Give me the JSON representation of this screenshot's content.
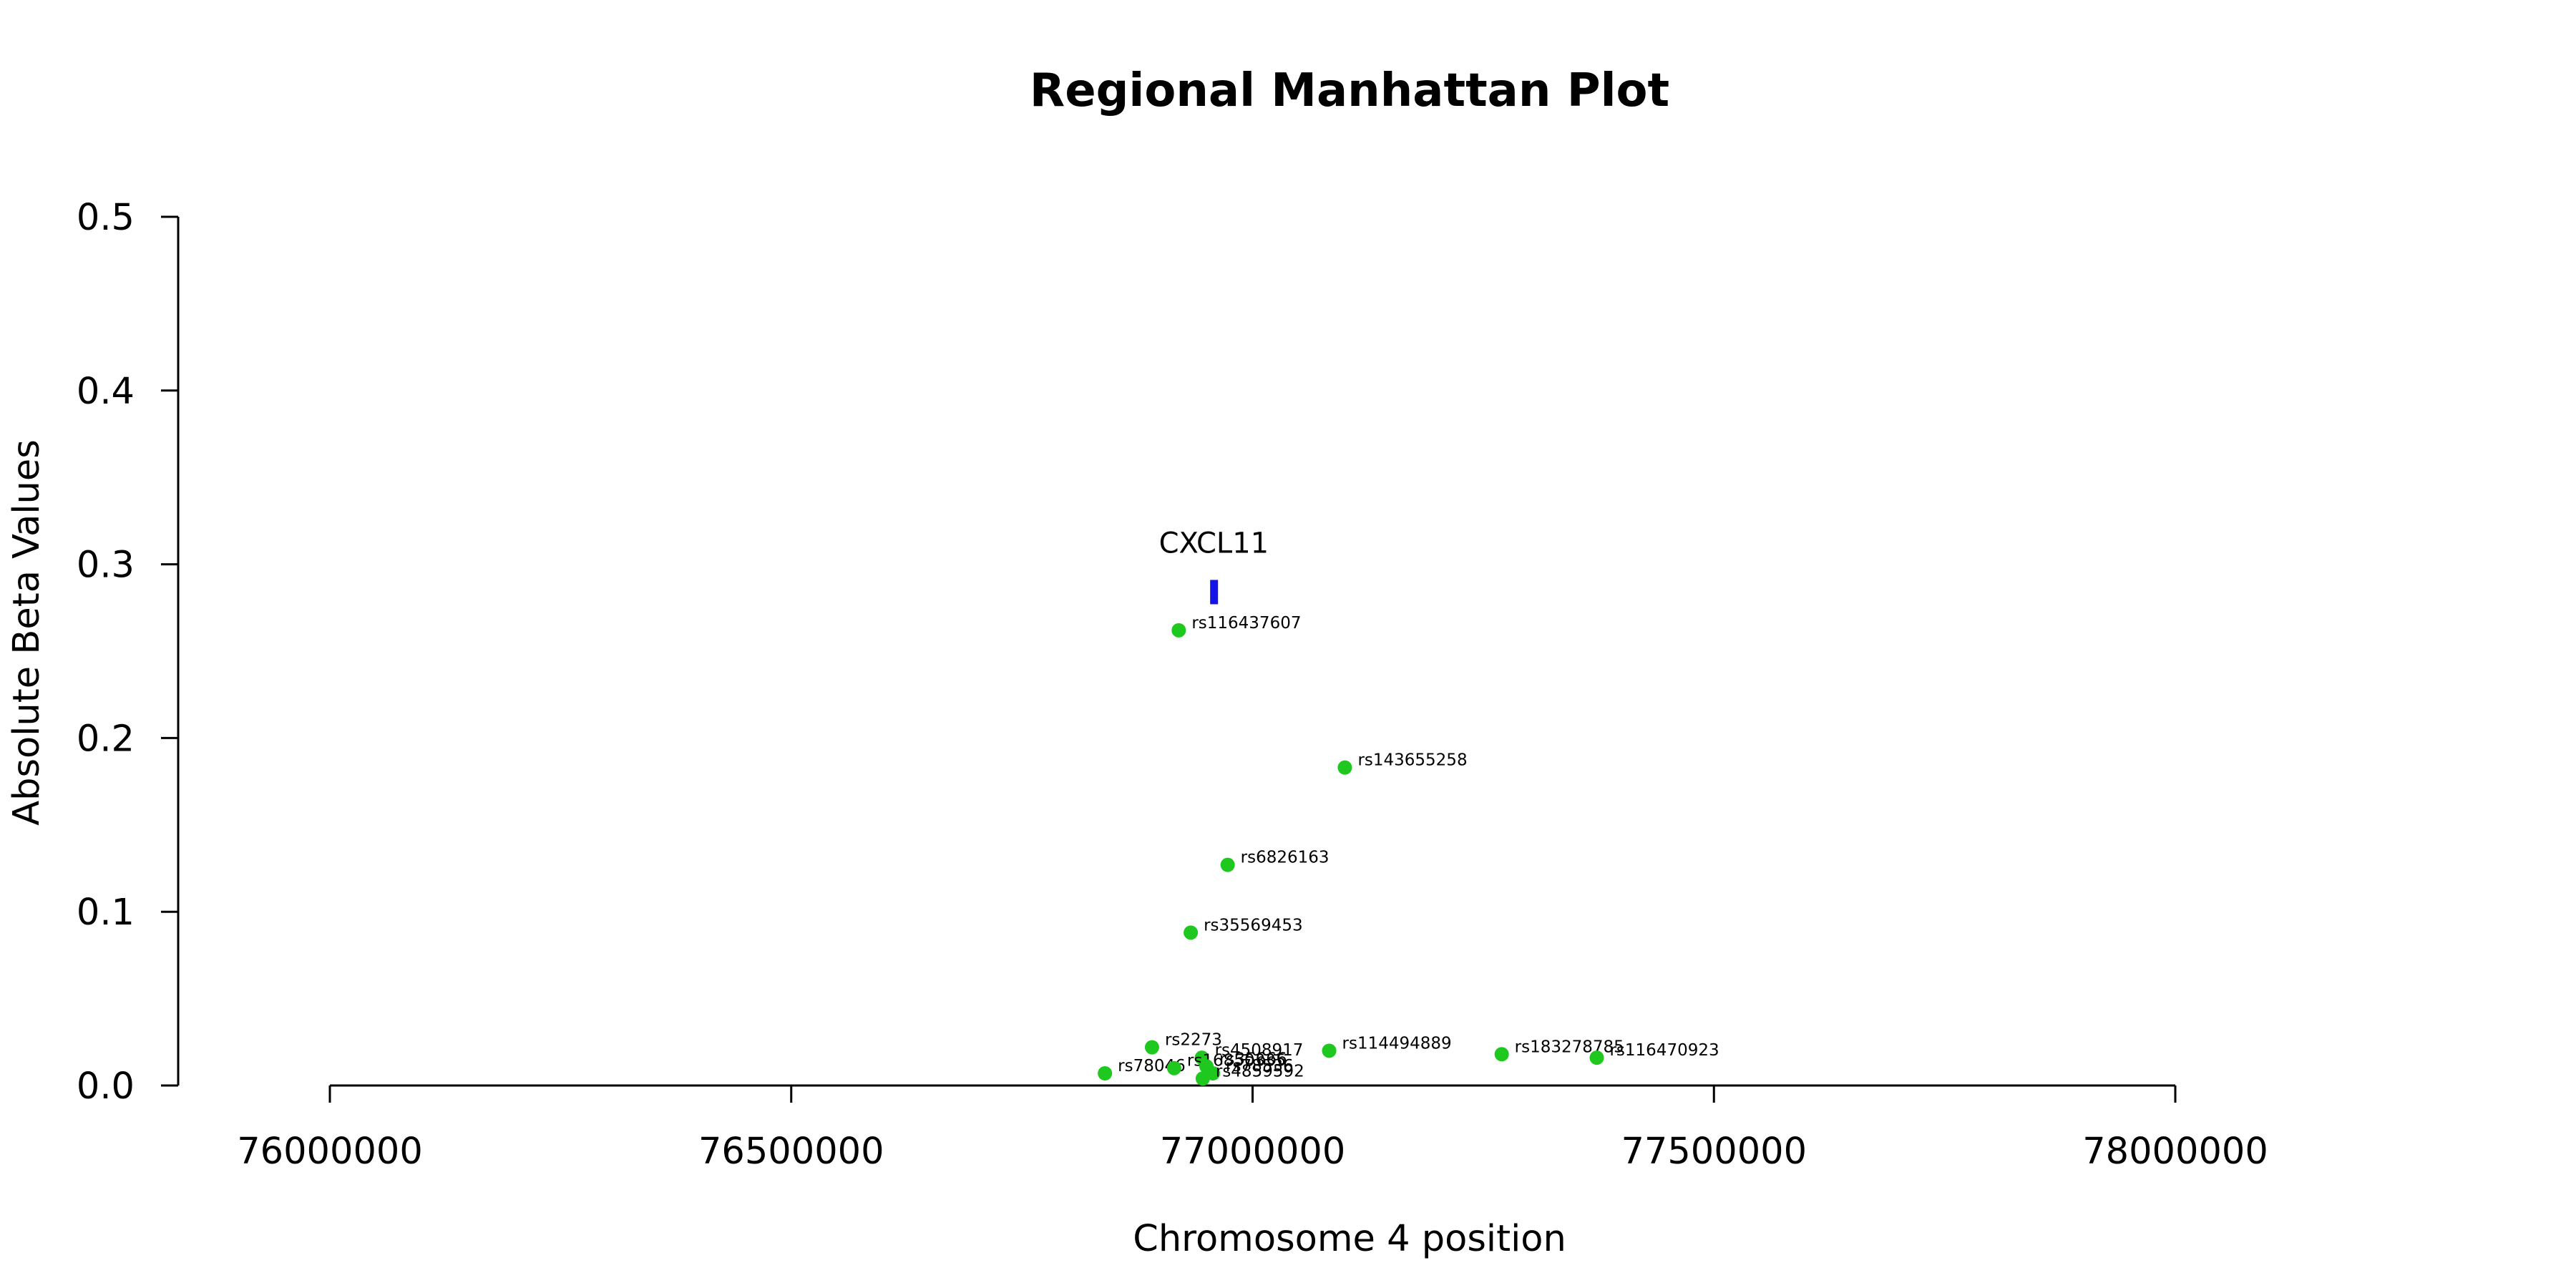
{
  "chart_data": {
    "type": "scatter",
    "title": "Regional Manhattan Plot",
    "xlabel": "Chromosome 4 position",
    "ylabel": "Absolute Beta Values",
    "xlim": [
      76000000,
      78000000
    ],
    "ylim": [
      0,
      0.5
    ],
    "x_ticks": [
      76000000,
      76500000,
      77000000,
      77500000,
      78000000
    ],
    "y_ticks": [
      0.0,
      0.1,
      0.2,
      0.3,
      0.4,
      0.5
    ],
    "x_tick_labels": [
      "76000000",
      "76500000",
      "77000000",
      "77500000",
      "78000000"
    ],
    "y_tick_labels": [
      "0.0",
      "0.1",
      "0.2",
      "0.3",
      "0.4",
      "0.5"
    ],
    "grid": false,
    "point_color": "#1ec81e",
    "gene_color": "#1414e6",
    "gene": {
      "name": "CXCL11",
      "start": 76954000,
      "end": 76962000,
      "y": 0.284
    },
    "points": [
      {
        "id": "rs116437607",
        "x": 76920000,
        "y": 0.262
      },
      {
        "id": "rs143655258",
        "x": 77100000,
        "y": 0.183
      },
      {
        "id": "rs6826163",
        "x": 76973000,
        "y": 0.127
      },
      {
        "id": "rs35569453",
        "x": 76933000,
        "y": 0.088
      },
      {
        "id": "rs2273",
        "x": 76891000,
        "y": 0.022
      },
      {
        "id": "rs4508917",
        "x": 76945000,
        "y": 0.016
      },
      {
        "id": "rs114494889",
        "x": 77083000,
        "y": 0.02
      },
      {
        "id": "rs183278785",
        "x": 77270000,
        "y": 0.018
      },
      {
        "id": "rs116470923",
        "x": 77373000,
        "y": 0.016
      },
      {
        "id": "rs78046",
        "x": 76840000,
        "y": 0.007
      },
      {
        "id": "rs16850335",
        "x": 76915000,
        "y": 0.01
      },
      {
        "id": "rs35666",
        "x": 76950000,
        "y": 0.011
      },
      {
        "id": "rs78536",
        "x": 76957000,
        "y": 0.007
      },
      {
        "id": "rs4859592",
        "x": 76946000,
        "y": 0.004
      }
    ]
  }
}
